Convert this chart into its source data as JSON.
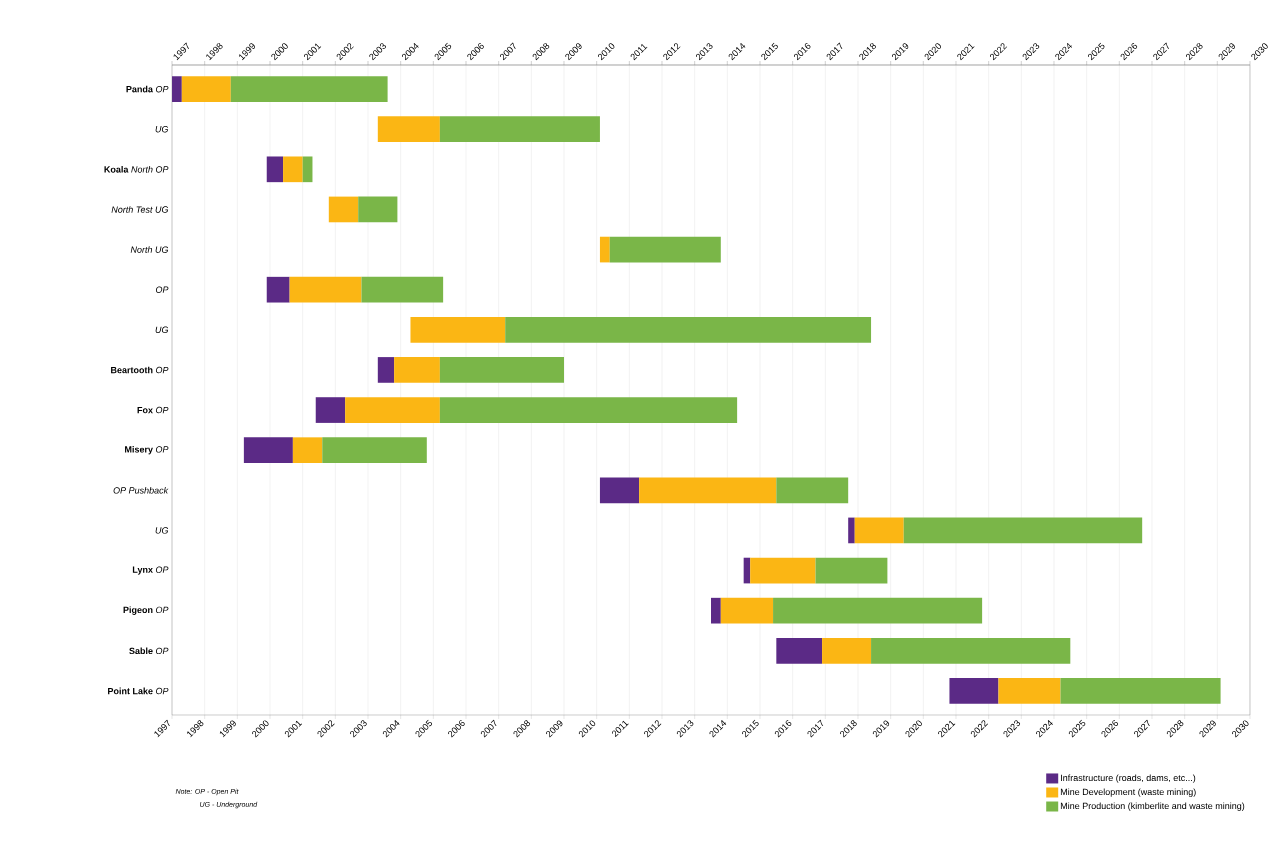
{
  "chart_data": {
    "type": "bar",
    "orientation": "horizontal",
    "categories": [
      "**Panda** *OP*",
      "*UG*",
      "**Koala** *North OP*",
      "*North Test UG*",
      "*North UG*",
      "*OP*",
      "*UG*",
      "**Beartooth** *OP*",
      "**Fox** *OP*",
      "**Misery** *OP*",
      "*OP Pushback*",
      "*UG*",
      "**Lynx** *OP*",
      "**Pigeon** *OP*",
      "**Sable** *OP*",
      "**Point Lake** *OP*"
    ],
    "series": [
      {
        "name": "Infrastructure (roads, dams, etc...)",
        "color": "#5b2a86",
        "base": [
          1997.0,
          null,
          1999.9,
          null,
          null,
          1999.9,
          null,
          2003.3,
          2001.4,
          1999.2,
          2010.1,
          2017.7,
          2014.5,
          2013.5,
          2015.5,
          2020.8
        ],
        "values": [
          0.3,
          null,
          0.5,
          null,
          null,
          0.7,
          null,
          0.5,
          0.9,
          1.5,
          1.2,
          0.2,
          0.2,
          0.3,
          1.4,
          1.5
        ]
      },
      {
        "name": "Mine Development (waste mining)",
        "color": "#fbb614",
        "base": [
          1997.3,
          2003.3,
          2000.4,
          2001.8,
          2010.1,
          2000.6,
          2004.3,
          2003.8,
          2002.3,
          2000.7,
          2011.3,
          2017.9,
          2014.7,
          2013.8,
          2016.9,
          2022.3
        ],
        "values": [
          1.5,
          1.9,
          0.6,
          0.9,
          0.3,
          2.2,
          2.9,
          1.4,
          2.9,
          0.9,
          4.2,
          1.5,
          2.0,
          1.6,
          1.5,
          1.9
        ]
      },
      {
        "name": "Mine Production (kimberlite and waste mining)",
        "color": "#7ab648",
        "base": [
          1998.8,
          2005.2,
          2001.0,
          2002.7,
          2010.4,
          2002.8,
          2007.2,
          2005.2,
          2005.2,
          2001.6,
          2015.5,
          2019.4,
          2016.7,
          2015.4,
          2018.4,
          2024.2
        ],
        "values": [
          4.8,
          4.9,
          0.3,
          1.2,
          3.4,
          2.5,
          11.2,
          3.8,
          9.1,
          3.2,
          2.2,
          7.3,
          2.2,
          6.4,
          6.1,
          4.9
        ]
      }
    ],
    "xlim": [
      1997,
      2030
    ],
    "xticks": [
      1997,
      1998,
      1999,
      2000,
      2001,
      2002,
      2003,
      2004,
      2005,
      2006,
      2007,
      2008,
      2009,
      2010,
      2011,
      2012,
      2013,
      2014,
      2015,
      2016,
      2017,
      2018,
      2019,
      2020,
      2021,
      2022,
      2023,
      2024,
      2025,
      2026,
      2027,
      2028,
      2029,
      2030
    ],
    "x2lim": [
      1997,
      2030
    ],
    "x2ticks": [
      1997,
      1998,
      1999,
      2000,
      2001,
      2002,
      2003,
      2004,
      2005,
      2006,
      2007,
      2008,
      2009,
      2010,
      2011,
      2012,
      2013,
      2014,
      2015,
      2016,
      2017,
      2018,
      2019,
      2020,
      2021,
      2022,
      2023,
      2024,
      2025,
      2026,
      2027,
      2028,
      2029,
      2030
    ],
    "grid": "x",
    "legend": "bottom right",
    "annotations": [
      "Note: OP - Open Pit",
      "UG - Underground"
    ]
  }
}
